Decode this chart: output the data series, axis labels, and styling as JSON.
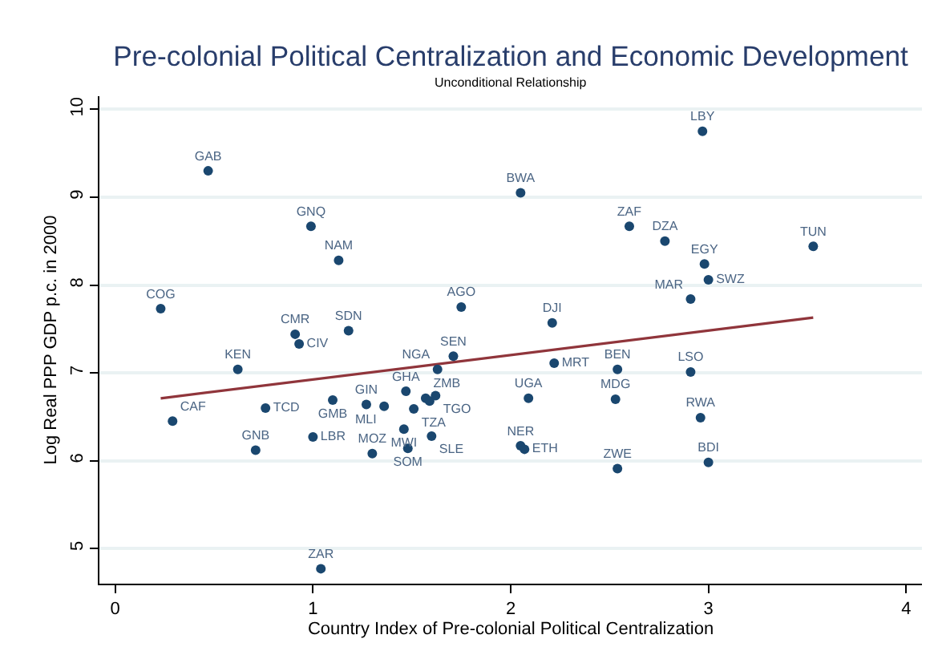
{
  "chart_data": {
    "type": "scatter",
    "title": "Pre-colonial Political Centralization and Economic Development",
    "subtitle": "Unconditional Relationship",
    "xlabel": "Country Index of Pre-colonial Political Centralization",
    "ylabel": "Log Real PPP GDP p.c. in 2000",
    "xlim": [
      -0.08,
      4.08
    ],
    "xticks": [
      0,
      1,
      2,
      3,
      4
    ],
    "ylim": [
      4.6,
      10.15
    ],
    "yticks": [
      5,
      6,
      7,
      8,
      9,
      10
    ],
    "grid": "y",
    "series": [
      {
        "color": "#1a476f",
        "marker": "circle",
        "x": [
          0.47,
          0.99,
          1.13,
          0.23,
          0.91,
          0.93,
          1.18,
          0.62,
          2.97,
          2.05,
          2.6,
          2.78,
          3.53,
          2.98,
          3.0,
          2.91,
          1.75,
          2.21,
          1.71,
          1.63,
          2.22,
          2.54,
          2.91,
          0.29,
          0.76,
          1.1,
          1.27,
          1.36,
          1.47,
          1.51,
          1.0,
          0.71,
          1.3,
          1.46,
          1.48,
          1.04,
          1.57,
          1.59,
          1.62,
          1.6,
          2.09,
          2.53,
          2.96,
          2.05,
          2.07,
          2.54,
          3.0
        ],
        "values": [
          9.3,
          8.67,
          8.28,
          7.73,
          7.44,
          7.33,
          7.48,
          7.04,
          9.75,
          9.05,
          8.67,
          8.5,
          8.44,
          8.24,
          8.06,
          7.84,
          7.75,
          7.57,
          7.19,
          7.04,
          7.11,
          7.04,
          7.01,
          6.45,
          6.6,
          6.69,
          6.64,
          6.62,
          6.79,
          6.59,
          6.27,
          6.12,
          6.08,
          6.36,
          6.14,
          4.77,
          6.71,
          6.68,
          6.74,
          6.28,
          6.71,
          6.7,
          6.49,
          6.17,
          6.13,
          5.91,
          5.98
        ],
        "value_labels": [
          "GAB",
          "GNQ",
          "NAM",
          "COG",
          "CMR",
          "CIV",
          "SDN",
          "KEN",
          "LBY",
          "BWA",
          "ZAF",
          "DZA",
          "TUN",
          "EGY",
          "SWZ",
          "MAR",
          "AGO",
          "DJI",
          "SEN",
          "NGA",
          "MRT",
          "BEN",
          "LSO",
          "CAF",
          "TCD",
          "GMB",
          "GIN",
          "MLI",
          "GHA",
          "TZA",
          "LBR",
          "GNB",
          "MOZ",
          "MWI",
          "SOM",
          "ZAR",
          "ZMB",
          null,
          "TGO",
          "SLE",
          "UGA",
          "MDG",
          "RWA",
          "NER",
          "ETH",
          "ZWE",
          "BDI"
        ]
      },
      {
        "type": "line",
        "color": "#90353b",
        "x": [
          0.23,
          3.53
        ],
        "values": [
          6.71,
          7.63
        ]
      }
    ]
  }
}
